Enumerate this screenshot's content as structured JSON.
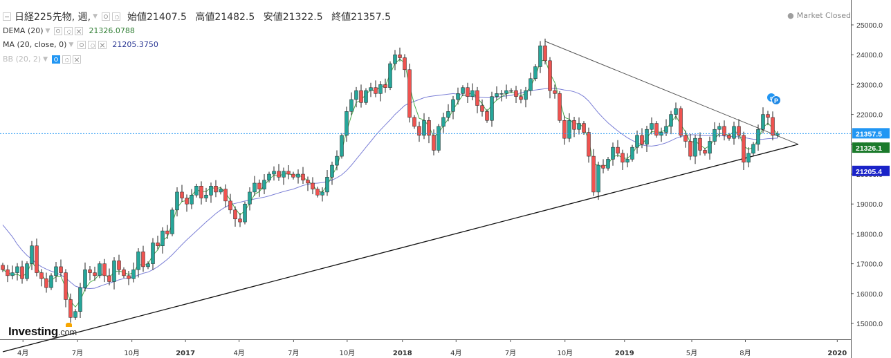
{
  "header": {
    "symbol_label": "日経225先物, 週,",
    "open": "始値21407.5",
    "high": "高値21482.5",
    "low": "安値21322.5",
    "close": "終値21357.5"
  },
  "indicators": {
    "dema": {
      "label": "DEMA (20)",
      "value": "21326.0788",
      "color": "#2e7d32"
    },
    "ma": {
      "label": "MA (20, close, 0)",
      "value": "21205.3750",
      "color": "#283593"
    },
    "bb": {
      "label": "BB (20, 2)"
    }
  },
  "status": {
    "market": "Market Closed"
  },
  "brand": {
    "name": "Investing",
    "suffix": ".com"
  },
  "markers": {
    "badge_r": "r",
    "badge_p": "P"
  },
  "colors": {
    "up": "#26a69a",
    "down": "#ef5350",
    "ma_line": "#7b7fd6",
    "dema_line": "#4caf50",
    "last_price_bg": "#2196f3",
    "dema_bg": "#1b7a2b",
    "ma_bg": "#1a23c8",
    "trendline": "#333333"
  },
  "chart_data": {
    "type": "candlestick",
    "timeframe": "weekly",
    "ylim": [
      14200,
      25500
    ],
    "y_ticks": [
      "15000.0",
      "16000.0",
      "17000.0",
      "18000.0",
      "19000.0",
      "20000.0",
      "21000.0",
      "22000.0",
      "23000.0",
      "24000.0",
      "25000.0"
    ],
    "x_ticks": [
      {
        "label": "4月",
        "pos": 0.027
      },
      {
        "label": "7月",
        "pos": 0.091
      },
      {
        "label": "10月",
        "pos": 0.155
      },
      {
        "label": "2017",
        "pos": 0.218
      },
      {
        "label": "4月",
        "pos": 0.281
      },
      {
        "label": "7月",
        "pos": 0.345
      },
      {
        "label": "10月",
        "pos": 0.408
      },
      {
        "label": "2018",
        "pos": 0.473
      },
      {
        "label": "4月",
        "pos": 0.536
      },
      {
        "label": "7月",
        "pos": 0.6
      },
      {
        "label": "10月",
        "pos": 0.664
      },
      {
        "label": "2019",
        "pos": 0.734
      },
      {
        "label": "5月",
        "pos": 0.813
      },
      {
        "label": "8月",
        "pos": 0.876
      },
      {
        "label": "2020",
        "pos": 0.984
      }
    ],
    "last_price_label": "21357.5",
    "dema_label": "21326.1",
    "ma_label": "21205.4",
    "last_price": 21357.5,
    "closes": [
      16800,
      16600,
      16700,
      16900,
      16500,
      17000,
      17600,
      16700,
      16500,
      16200,
      16600,
      16900,
      16700,
      15800,
      15200,
      15400,
      16200,
      16800,
      16700,
      16600,
      17000,
      16600,
      16400,
      17100,
      16800,
      16600,
      16500,
      16800,
      17400,
      16900,
      17000,
      17700,
      17600,
      18100,
      18000,
      18800,
      19400,
      19200,
      19000,
      19300,
      19600,
      19200,
      19300,
      19600,
      19400,
      19500,
      19100,
      18800,
      18500,
      18400,
      19000,
      19400,
      19700,
      19500,
      19800,
      20000,
      20100,
      19900,
      20100,
      20000,
      19900,
      20000,
      19800,
      19700,
      19500,
      19300,
      19400,
      19900,
      20300,
      20600,
      21300,
      22100,
      22500,
      22800,
      22400,
      22800,
      22900,
      22700,
      23000,
      22900,
      23700,
      24000,
      23900,
      23500,
      21900,
      21600,
      21300,
      21800,
      21300,
      20800,
      21600,
      21900,
      22100,
      22500,
      22700,
      22900,
      22600,
      22800,
      22300,
      22100,
      21800,
      22600,
      22700,
      22700,
      22800,
      22800,
      22600,
      22500,
      22800,
      23200,
      23600,
      24300,
      23800,
      22800,
      22700,
      21800,
      21200,
      21800,
      21500,
      21700,
      21400,
      20600,
      19400,
      20300,
      20200,
      20500,
      20900,
      20700,
      20400,
      20500,
      20900,
      21300,
      21000,
      21500,
      21700,
      21300,
      21400,
      21600,
      22000,
      22200,
      21300,
      21100,
      20600,
      21200,
      20800,
      20700,
      21100,
      21500,
      21600,
      21300,
      21200,
      21600,
      21300,
      20400,
      20700,
      21000,
      21500,
      22000,
      21900,
      21300,
      21357.5
    ],
    "dema": [
      16800,
      16700,
      16620,
      16650,
      16560,
      16700,
      17050,
      16850,
      16650,
      16400,
      16430,
      16570,
      16580,
      16200,
      15740,
      15550,
      15770,
      16150,
      16380,
      16470,
      16650,
      16640,
      16530,
      16730,
      16760,
      16710,
      16640,
      16710,
      16980,
      16950,
      16990,
      17290,
      17460,
      17770,
      17900,
      18350,
      18870,
      19080,
      19120,
      19280,
      19480,
      19420,
      19420,
      19550,
      19520,
      19550,
      19370,
      19130,
      18850,
      18640,
      18770,
      19030,
      19320,
      19420,
      19620,
      19820,
      19970,
      19940,
      20010,
      20010,
      19960,
      19980,
      19890,
      19790,
      19630,
      19440,
      19400,
      19630,
      19940,
      20260,
      20780,
      21430,
      21960,
      22400,
      22480,
      22680,
      22820,
      22800,
      22930,
      22950,
      23360,
      23710,
      23850,
      23730,
      22950,
      22330,
      21870,
      21820,
      21600,
      21250,
      21390,
      21620,
      21850,
      22160,
      22410,
      22650,
      22650,
      22740,
      22550,
      22360,
      22090,
      22320,
      22480,
      22590,
      22690,
      22750,
      22700,
      22620,
      22710,
      22940,
      23260,
      23780,
      23830,
      23380,
      23070,
      22500,
      21900,
      21840,
      21690,
      21690,
      21560,
      21140,
      20350,
      20300,
      20240,
      20340,
      20570,
      20650,
      20540,
      20530,
      20680,
      20940,
      20990,
      21210,
      21430,
      21400,
      21420,
      21500,
      21730,
      21950,
      21660,
      21420,
      21050,
      21110,
      20980,
      20860,
      20950,
      21180,
      21370,
      21350,
      21300,
      21430,
      21380,
      20940,
      20830,
      20900,
      21170,
      21560,
      21710,
      21540,
      21326.1
    ],
    "ma": [
      18300,
      18100,
      17900,
      17650,
      17450,
      17280,
      17150,
      17000,
      16900,
      16820,
      16750,
      16700,
      16620,
      16520,
      16380,
      16250,
      16200,
      16180,
      16170,
      16180,
      16240,
      16300,
      16350,
      16400,
      16460,
      16500,
      16530,
      16560,
      16620,
      16680,
      16720,
      16800,
      16900,
      17020,
      17150,
      17300,
      17470,
      17640,
      17800,
      17950,
      18100,
      18250,
      18400,
      18540,
      18680,
      18800,
      18900,
      18980,
      19020,
      19060,
      19100,
      19130,
      19170,
      19200,
      19230,
      19270,
      19320,
      19370,
      19420,
      19460,
      19500,
      19560,
      19620,
      19660,
      19690,
      19700,
      19720,
      19750,
      19800,
      19880,
      19980,
      20120,
      20300,
      20500,
      20700,
      20900,
      21100,
      21300,
      21480,
      21650,
      21820,
      22000,
      22150,
      22300,
      22380,
      22440,
      22500,
      22560,
      22600,
      22620,
      22640,
      22660,
      22680,
      22700,
      22680,
      22650,
      22620,
      22600,
      22580,
      22570,
      22560,
      22560,
      22580,
      22600,
      22620,
      22640,
      22680,
      22720,
      22760,
      22800,
      22820,
      22840,
      22860,
      22880,
      22870,
      22850,
      22820,
      22800,
      22760,
      22700,
      22600,
      22450,
      22250,
      22050,
      21880,
      21720,
      21580,
      21450,
      21330,
      21220,
      21130,
      21050,
      20980,
      20950,
      20940,
      20960,
      21000,
      21050,
      21120,
      21200,
      21260,
      21300,
      21320,
      21320,
      21300,
      21290,
      21290,
      21290,
      21290,
      21280,
      21270,
      21260,
      21250,
      21230,
      21200,
      21170,
      21160,
      21170,
      21190,
      21200,
      21205.4
    ],
    "trendlines": [
      {
        "name": "upper",
        "from": {
          "idx": 112,
          "price": 24450
        },
        "to": {
          "idx": 160,
          "price": 21000
        }
      },
      {
        "name": "lower",
        "from": {
          "idx": 0,
          "price": 14050
        },
        "to": {
          "idx": 160,
          "price": 21000
        }
      }
    ]
  }
}
